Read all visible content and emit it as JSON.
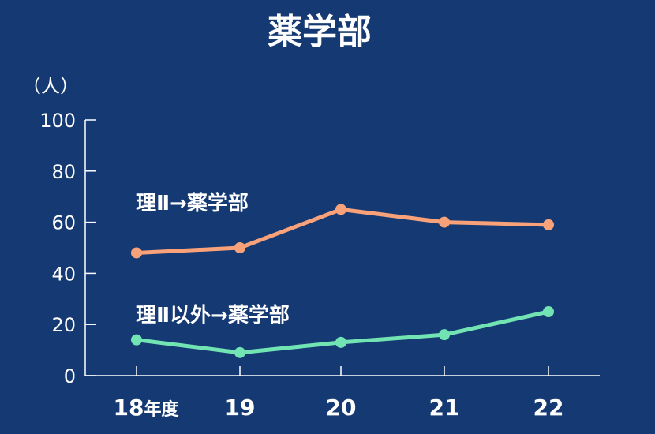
{
  "colors": {
    "background": "#153a73",
    "axis": "#ffffff",
    "text": "#ffffff",
    "series_1": "#f9a27a",
    "series_2": "#72e3b2"
  },
  "chart_data": {
    "type": "line",
    "title": "薬学部",
    "ylabel": "（人）",
    "xlabel": "",
    "categories": [
      "18",
      "19",
      "20",
      "21",
      "22"
    ],
    "first_category_suffix": "年度",
    "yticks": [
      "0",
      "20",
      "40",
      "60",
      "80",
      "100"
    ],
    "ylim": [
      0,
      100
    ],
    "grid": false,
    "series": [
      {
        "name": "理Ⅱ→薬学部",
        "values": [
          48,
          50,
          65,
          60,
          59
        ]
      },
      {
        "name": "理Ⅱ以外→薬学部",
        "values": [
          14,
          9,
          13,
          16,
          25
        ]
      }
    ]
  }
}
